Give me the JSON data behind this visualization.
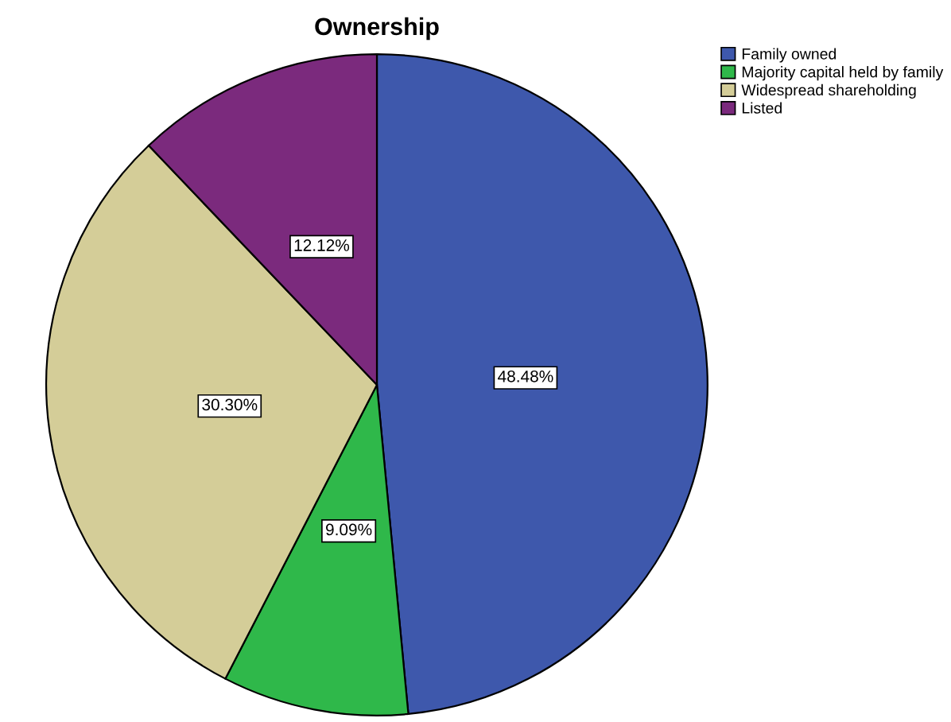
{
  "chart_data": {
    "type": "pie",
    "title": "Ownership",
    "categories": [
      "Family owned",
      "Majority capital held by family",
      "Widespread shareholding",
      "Listed"
    ],
    "values": [
      48.48,
      9.09,
      30.3,
      12.12
    ],
    "colors": [
      "#3e58ac",
      "#2fb84a",
      "#d4cd98",
      "#7b2a7d"
    ],
    "value_labels": [
      "48.48%",
      "9.09%",
      "30.30%",
      "12.12%"
    ],
    "legend": "top right"
  }
}
